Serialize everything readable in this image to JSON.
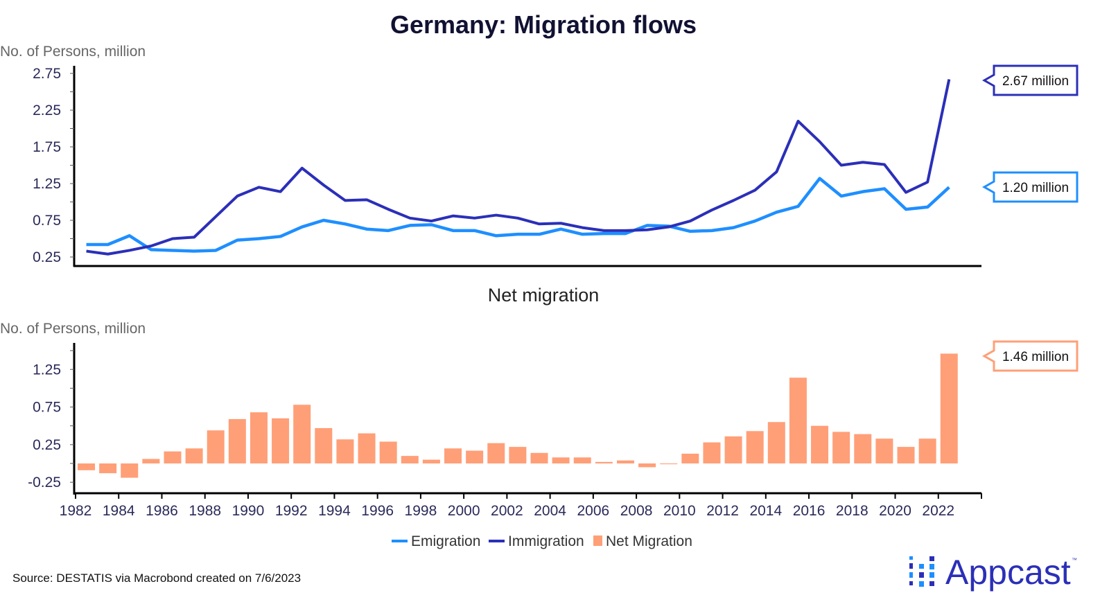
{
  "title": "Germany: Migration flows",
  "colors": {
    "emigration": "#1e8fff",
    "immigration": "#2b2fb8",
    "net": "#ff9f78",
    "axis": "#000000"
  },
  "chart_data": [
    {
      "type": "line",
      "title": "Germany: Migration flows",
      "ylabel": "No. of Persons, million",
      "ylim": [
        0.125,
        2.85
      ],
      "yticks": [
        "0.25",
        "0.75",
        "1.25",
        "1.75",
        "2.25",
        "2.75"
      ],
      "x": [
        1982,
        1983,
        1984,
        1985,
        1986,
        1987,
        1988,
        1989,
        1990,
        1991,
        1992,
        1993,
        1994,
        1995,
        1996,
        1997,
        1998,
        1999,
        2000,
        2001,
        2002,
        2003,
        2004,
        2005,
        2006,
        2007,
        2008,
        2009,
        2010,
        2011,
        2012,
        2013,
        2014,
        2015,
        2016,
        2017,
        2018,
        2019,
        2020,
        2021,
        2022
      ],
      "series": [
        {
          "name": "Emigration",
          "values": [
            0.42,
            0.42,
            0.54,
            0.35,
            0.34,
            0.33,
            0.34,
            0.48,
            0.5,
            0.53,
            0.66,
            0.75,
            0.7,
            0.63,
            0.61,
            0.68,
            0.69,
            0.61,
            0.61,
            0.54,
            0.56,
            0.56,
            0.63,
            0.56,
            0.57,
            0.57,
            0.68,
            0.67,
            0.6,
            0.61,
            0.65,
            0.74,
            0.86,
            0.94,
            1.32,
            1.08,
            1.14,
            1.18,
            0.9,
            0.93,
            1.2
          ]
        },
        {
          "name": "Immigration",
          "values": [
            0.33,
            0.29,
            0.34,
            0.4,
            0.5,
            0.52,
            0.8,
            1.08,
            1.2,
            1.14,
            1.46,
            1.23,
            1.02,
            1.03,
            0.9,
            0.78,
            0.74,
            0.81,
            0.78,
            0.82,
            0.78,
            0.7,
            0.71,
            0.65,
            0.61,
            0.61,
            0.62,
            0.66,
            0.74,
            0.89,
            1.02,
            1.16,
            1.41,
            2.1,
            1.82,
            1.5,
            1.54,
            1.51,
            1.13,
            1.27,
            2.67
          ]
        }
      ],
      "callouts": [
        {
          "series": "Immigration",
          "label": "2.67 million"
        },
        {
          "series": "Emigration",
          "label": "1.20 million"
        }
      ]
    },
    {
      "type": "bar",
      "title": "Net migration",
      "ylabel": "No. of Persons, million",
      "ylim": [
        -0.37,
        1.6
      ],
      "yticks": [
        "-0.25",
        "0.25",
        "0.75",
        "1.25"
      ],
      "xlim": [
        1982,
        2024
      ],
      "xticks": [
        "1982",
        "1984",
        "1986",
        "1988",
        "1990",
        "1992",
        "1994",
        "1996",
        "1998",
        "2000",
        "2002",
        "2004",
        "2006",
        "2008",
        "2010",
        "2012",
        "2014",
        "2016",
        "2018",
        "2020",
        "2022"
      ],
      "categories": [
        1982,
        1983,
        1984,
        1985,
        1986,
        1987,
        1988,
        1989,
        1990,
        1991,
        1992,
        1993,
        1994,
        1995,
        1996,
        1997,
        1998,
        1999,
        2000,
        2001,
        2002,
        2003,
        2004,
        2005,
        2006,
        2007,
        2008,
        2009,
        2010,
        2011,
        2012,
        2013,
        2014,
        2015,
        2016,
        2017,
        2018,
        2019,
        2020,
        2021,
        2022
      ],
      "series": [
        {
          "name": "Net Migration",
          "values": [
            -0.09,
            -0.13,
            -0.19,
            0.06,
            0.16,
            0.2,
            0.44,
            0.59,
            0.68,
            0.6,
            0.78,
            0.47,
            0.32,
            0.4,
            0.29,
            0.1,
            0.05,
            0.2,
            0.17,
            0.27,
            0.22,
            0.14,
            0.08,
            0.08,
            0.02,
            0.04,
            -0.05,
            -0.01,
            0.13,
            0.28,
            0.36,
            0.43,
            0.55,
            1.14,
            0.5,
            0.42,
            0.39,
            0.33,
            0.22,
            0.33,
            1.46
          ]
        }
      ],
      "callouts": [
        {
          "series": "Net Migration",
          "label": "1.46 million"
        }
      ]
    }
  ],
  "legend": [
    "Emigration",
    "Immigration",
    "Net Migration"
  ],
  "source": "Source: DESTATIS via Macrobond created on 7/6/2023",
  "logo": "Appcast"
}
